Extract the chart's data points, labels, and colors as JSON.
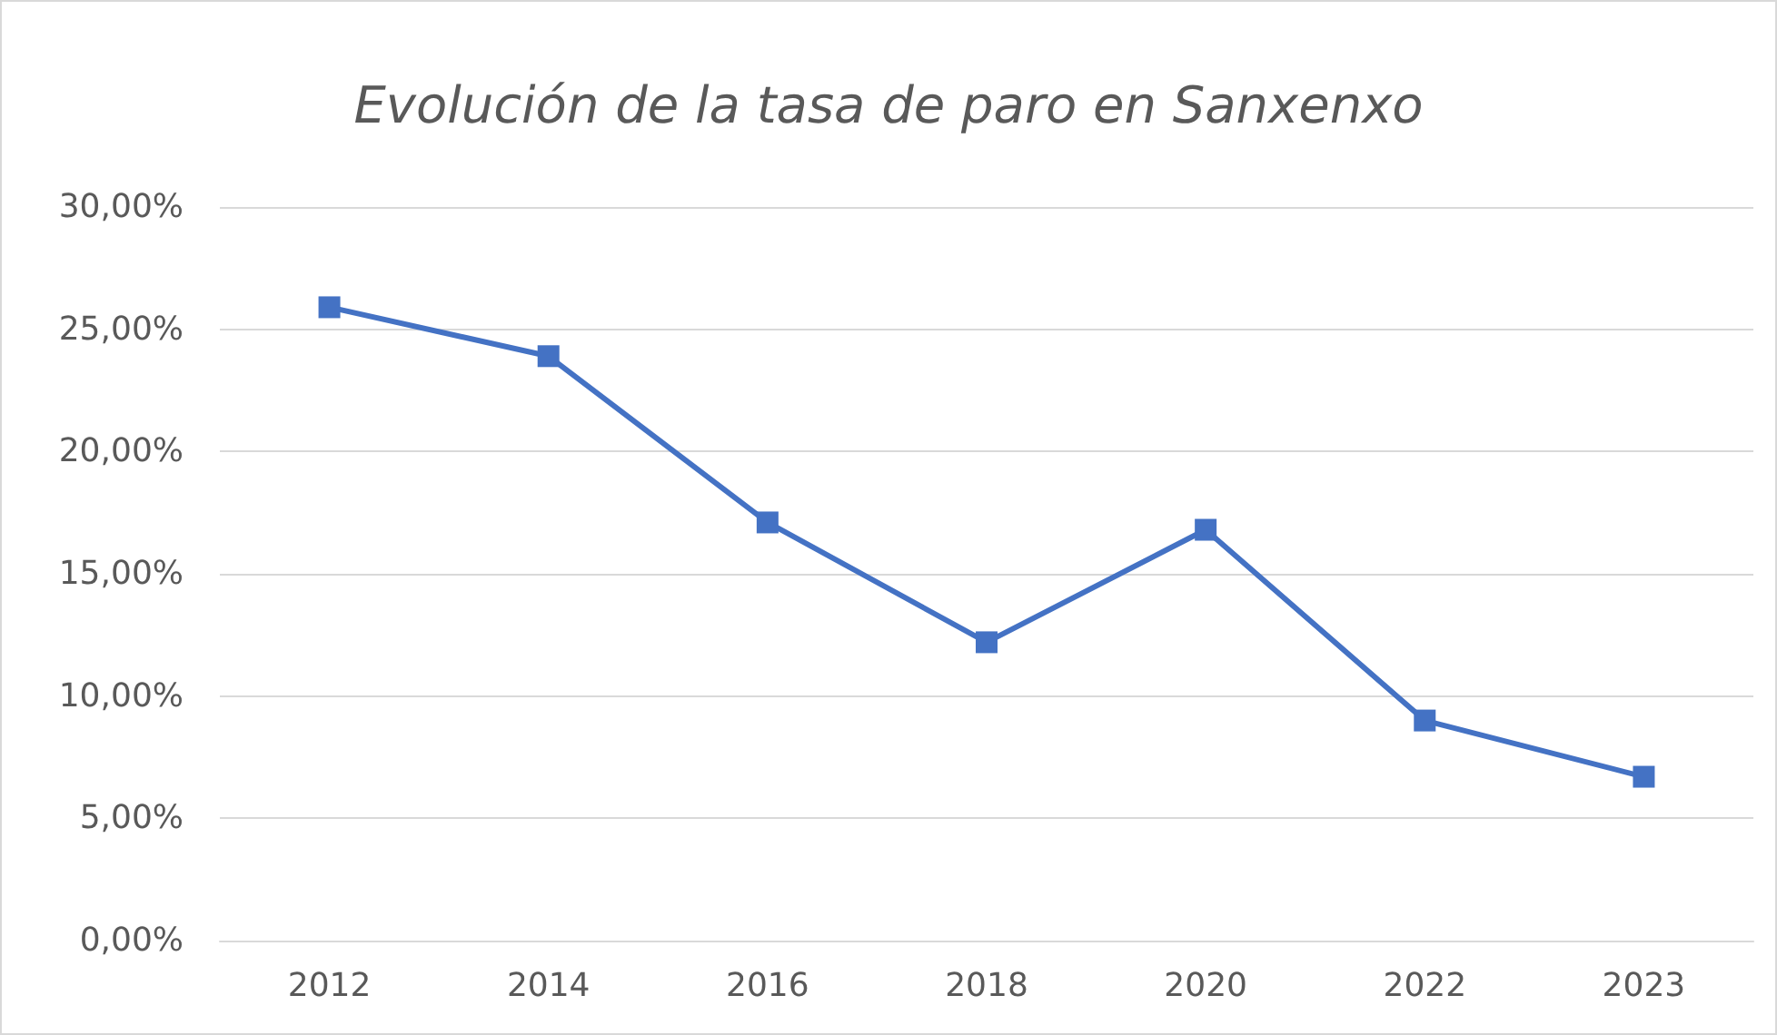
{
  "chart_data": {
    "type": "line",
    "title": "Evolución de la tasa de paro en Sanxenxo",
    "categories": [
      "2012",
      "2014",
      "2016",
      "2018",
      "2020",
      "2022",
      "2023"
    ],
    "series": [
      {
        "color": "#4472c4",
        "values": [
          25.9,
          23.9,
          17.1,
          12.2,
          16.8,
          9.0,
          6.7
        ]
      }
    ],
    "ylim": [
      0,
      30
    ],
    "yticks": [
      {
        "value": 0,
        "label": "0,00%"
      },
      {
        "value": 5,
        "label": "5,00%"
      },
      {
        "value": 10,
        "label": "10,00%"
      },
      {
        "value": 15,
        "label": "15,00%"
      },
      {
        "value": 20,
        "label": "20,00%"
      },
      {
        "value": 25,
        "label": "25,00%"
      },
      {
        "value": 30,
        "label": "30,00%"
      }
    ],
    "grid": "y",
    "marker": "square",
    "line_style": "solid"
  }
}
